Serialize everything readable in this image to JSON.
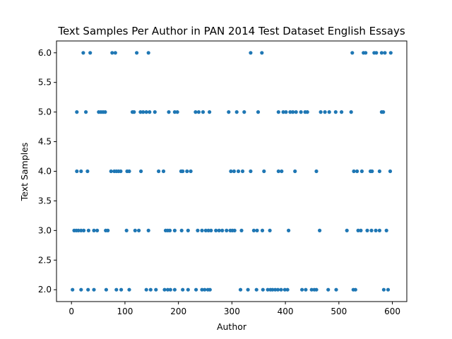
{
  "chart_data": {
    "type": "scatter",
    "title": "Text Samples Per Author in PAN 2014 Test Dataset English Essays",
    "xlabel": "Author",
    "ylabel": "Text Samples",
    "xlim": [
      -28,
      627
    ],
    "ylim": [
      1.8,
      6.2
    ],
    "xticks": [
      0,
      100,
      200,
      300,
      400,
      500,
      600
    ],
    "xtick_labels": [
      "0",
      "100",
      "200",
      "300",
      "400",
      "500",
      "600"
    ],
    "yticks": [
      2.0,
      2.5,
      3.0,
      3.5,
      4.0,
      4.5,
      5.0,
      5.5,
      6.0
    ],
    "ytick_labels": [
      "2.0",
      "2.5",
      "3.0",
      "3.5",
      "4.0",
      "4.5",
      "5.0",
      "5.5",
      "6.0"
    ],
    "grid": false,
    "marker_color": "#1f77b4",
    "series": [
      {
        "points": [
          [
            2,
            2
          ],
          [
            18,
            2
          ],
          [
            31,
            2
          ],
          [
            42,
            2
          ],
          [
            65,
            2
          ],
          [
            84,
            2
          ],
          [
            93,
            2
          ],
          [
            108,
            2
          ],
          [
            140,
            2
          ],
          [
            148,
            2
          ],
          [
            158,
            2
          ],
          [
            174,
            2
          ],
          [
            180,
            2
          ],
          [
            185,
            2
          ],
          [
            193,
            2
          ],
          [
            208,
            2
          ],
          [
            218,
            2
          ],
          [
            233,
            2
          ],
          [
            244,
            2
          ],
          [
            249,
            2
          ],
          [
            255,
            2
          ],
          [
            259,
            2
          ],
          [
            316,
            2
          ],
          [
            330,
            2
          ],
          [
            346,
            2
          ],
          [
            358,
            2
          ],
          [
            367,
            2
          ],
          [
            372,
            2
          ],
          [
            376,
            2
          ],
          [
            381,
            2
          ],
          [
            386,
            2
          ],
          [
            392,
            2
          ],
          [
            399,
            2
          ],
          [
            404,
            2
          ],
          [
            431,
            2
          ],
          [
            438,
            2
          ],
          [
            449,
            2
          ],
          [
            454,
            2
          ],
          [
            458,
            2
          ],
          [
            480,
            2
          ],
          [
            495,
            2
          ],
          [
            527,
            2
          ],
          [
            531,
            2
          ],
          [
            584,
            2
          ],
          [
            592,
            2
          ],
          [
            5,
            3
          ],
          [
            9,
            3
          ],
          [
            13,
            3
          ],
          [
            18,
            3
          ],
          [
            23,
            3
          ],
          [
            32,
            3
          ],
          [
            42,
            3
          ],
          [
            48,
            3
          ],
          [
            64,
            3
          ],
          [
            68,
            3
          ],
          [
            103,
            3
          ],
          [
            119,
            3
          ],
          [
            126,
            3
          ],
          [
            144,
            3
          ],
          [
            176,
            3
          ],
          [
            180,
            3
          ],
          [
            184,
            3
          ],
          [
            193,
            3
          ],
          [
            206,
            3
          ],
          [
            218,
            3
          ],
          [
            236,
            3
          ],
          [
            244,
            3
          ],
          [
            251,
            3
          ],
          [
            256,
            3
          ],
          [
            261,
            3
          ],
          [
            270,
            3
          ],
          [
            276,
            3
          ],
          [
            282,
            3
          ],
          [
            290,
            3
          ],
          [
            297,
            3
          ],
          [
            301,
            3
          ],
          [
            305,
            3
          ],
          [
            318,
            3
          ],
          [
            341,
            3
          ],
          [
            347,
            3
          ],
          [
            357,
            3
          ],
          [
            371,
            3
          ],
          [
            406,
            3
          ],
          [
            464,
            3
          ],
          [
            515,
            3
          ],
          [
            536,
            3
          ],
          [
            541,
            3
          ],
          [
            553,
            3
          ],
          [
            561,
            3
          ],
          [
            569,
            3
          ],
          [
            576,
            3
          ],
          [
            589,
            3
          ],
          [
            10,
            4
          ],
          [
            18,
            4
          ],
          [
            30,
            4
          ],
          [
            74,
            4
          ],
          [
            80,
            4
          ],
          [
            84,
            4
          ],
          [
            88,
            4
          ],
          [
            92,
            4
          ],
          [
            104,
            4
          ],
          [
            108,
            4
          ],
          [
            130,
            4
          ],
          [
            163,
            4
          ],
          [
            172,
            4
          ],
          [
            205,
            4
          ],
          [
            208,
            4
          ],
          [
            216,
            4
          ],
          [
            223,
            4
          ],
          [
            298,
            4
          ],
          [
            304,
            4
          ],
          [
            312,
            4
          ],
          [
            320,
            4
          ],
          [
            335,
            4
          ],
          [
            360,
            4
          ],
          [
            387,
            4
          ],
          [
            393,
            4
          ],
          [
            418,
            4
          ],
          [
            458,
            4
          ],
          [
            528,
            4
          ],
          [
            534,
            4
          ],
          [
            543,
            4
          ],
          [
            559,
            4
          ],
          [
            562,
            4
          ],
          [
            576,
            4
          ],
          [
            596,
            4
          ],
          [
            10,
            5
          ],
          [
            27,
            5
          ],
          [
            51,
            5
          ],
          [
            55,
            5
          ],
          [
            59,
            5
          ],
          [
            63,
            5
          ],
          [
            114,
            5
          ],
          [
            117,
            5
          ],
          [
            129,
            5
          ],
          [
            134,
            5
          ],
          [
            140,
            5
          ],
          [
            146,
            5
          ],
          [
            156,
            5
          ],
          [
            182,
            5
          ],
          [
            193,
            5
          ],
          [
            198,
            5
          ],
          [
            232,
            5
          ],
          [
            238,
            5
          ],
          [
            246,
            5
          ],
          [
            258,
            5
          ],
          [
            294,
            5
          ],
          [
            309,
            5
          ],
          [
            323,
            5
          ],
          [
            349,
            5
          ],
          [
            387,
            5
          ],
          [
            396,
            5
          ],
          [
            401,
            5
          ],
          [
            409,
            5
          ],
          [
            414,
            5
          ],
          [
            420,
            5
          ],
          [
            429,
            5
          ],
          [
            437,
            5
          ],
          [
            441,
            5
          ],
          [
            466,
            5
          ],
          [
            474,
            5
          ],
          [
            482,
            5
          ],
          [
            494,
            5
          ],
          [
            505,
            5
          ],
          [
            523,
            5
          ],
          [
            580,
            5
          ],
          [
            583,
            5
          ],
          [
            22,
            6
          ],
          [
            35,
            6
          ],
          [
            76,
            6
          ],
          [
            82,
            6
          ],
          [
            122,
            6
          ],
          [
            144,
            6
          ],
          [
            335,
            6
          ],
          [
            356,
            6
          ],
          [
            525,
            6
          ],
          [
            546,
            6
          ],
          [
            550,
            6
          ],
          [
            566,
            6
          ],
          [
            570,
            6
          ],
          [
            580,
            6
          ],
          [
            586,
            6
          ],
          [
            597,
            6
          ]
        ]
      }
    ]
  }
}
